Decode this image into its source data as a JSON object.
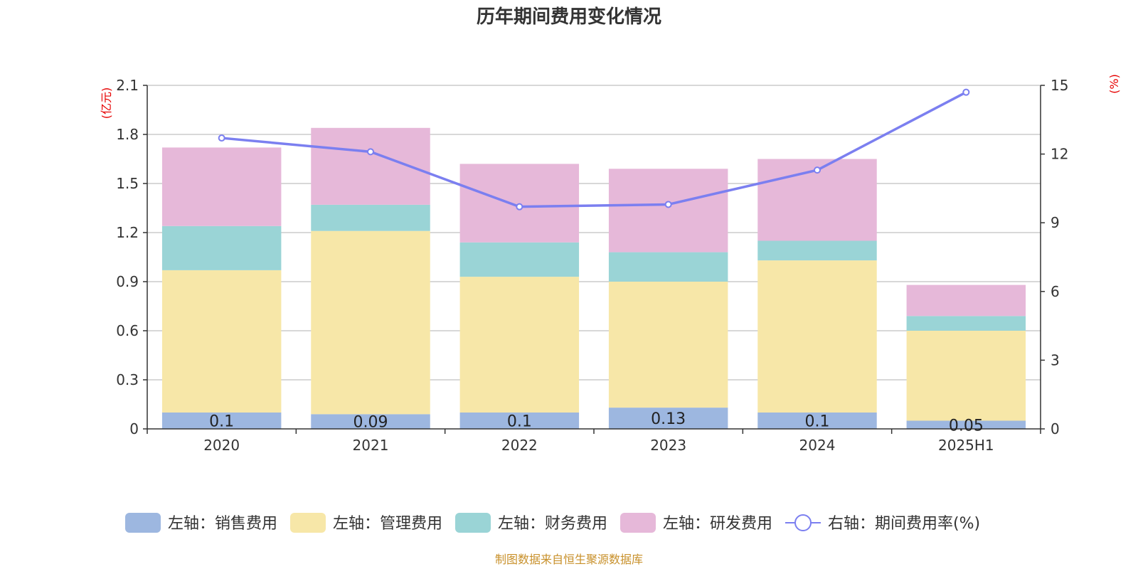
{
  "chart_data": {
    "type": "bar",
    "title": "历年期间费用变化情况",
    "categories": [
      "2020",
      "2021",
      "2022",
      "2023",
      "2024",
      "2025H1"
    ],
    "y_left": {
      "unit": "(亿元)",
      "ticks": [
        "0",
        "0.3",
        "0.6",
        "0.9",
        "1.2",
        "1.5",
        "1.8",
        "2.1"
      ],
      "ylim": [
        0,
        2.1
      ]
    },
    "y_right": {
      "unit": "(%)",
      "ticks": [
        "0",
        "3",
        "6",
        "9",
        "12",
        "15"
      ],
      "ylim": [
        0,
        15
      ]
    },
    "series": [
      {
        "name": "左轴：销售费用",
        "type": "bar",
        "axis": "left",
        "color": "#9db7e0",
        "values": [
          0.1,
          0.09,
          0.1,
          0.13,
          0.1,
          0.05
        ],
        "labels": [
          "0.1",
          "0.09",
          "0.1",
          "0.13",
          "0.1",
          "0.05"
        ]
      },
      {
        "name": "左轴：管理费用",
        "type": "bar",
        "axis": "left",
        "color": "#f7e7a8",
        "values": [
          0.87,
          1.12,
          0.83,
          0.77,
          0.93,
          0.55
        ]
      },
      {
        "name": "左轴：财务费用",
        "type": "bar",
        "axis": "left",
        "color": "#9ad4d6",
        "values": [
          0.27,
          0.16,
          0.21,
          0.18,
          0.12,
          0.09
        ]
      },
      {
        "name": "左轴：研发费用",
        "type": "bar",
        "axis": "left",
        "color": "#e6b8d9",
        "values": [
          0.48,
          0.47,
          0.48,
          0.51,
          0.5,
          0.19
        ]
      },
      {
        "name": "右轴：期间费用率(%)",
        "type": "line",
        "axis": "right",
        "color": "#7b7ff0",
        "values": [
          12.7,
          12.1,
          9.7,
          9.8,
          11.3,
          14.7
        ]
      }
    ],
    "grid": true,
    "legend_position": "bottom",
    "source": "制图数据来自恒生聚源数据库"
  }
}
